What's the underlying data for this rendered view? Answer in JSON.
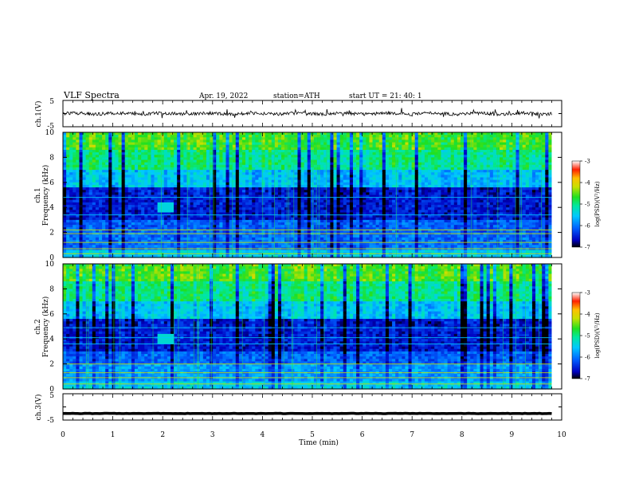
{
  "header": {
    "title": "VLF  Spectra",
    "date": "Apr. 19, 2022",
    "station": "station=ATH",
    "start_ut": "start  UT  =    21: 40: 1"
  },
  "chart_data": [
    {
      "type": "line",
      "panel": "ch1-waveform",
      "ylabel": "ch.1(V)",
      "yticks": [
        "5",
        "-5"
      ],
      "ylim": [
        -5,
        5
      ],
      "xlim": [
        0,
        10
      ],
      "description_values": "noisy waveform near 0 V with spikes between about -1.5 and +1.5 V"
    },
    {
      "type": "heatmap",
      "panel": "ch1-spectrogram",
      "ylabel": "ch.1\nFrequency  (kHz)",
      "ylabel_lines": [
        "ch.1",
        "Frequency  (kHz)"
      ],
      "yticks": [
        "0",
        "2",
        "4",
        "6",
        "8",
        "10"
      ],
      "ylim": [
        0,
        10
      ],
      "xlim": [
        0,
        10
      ],
      "colorbar": {
        "label": "log(PSD)(V²/Hz)",
        "ticks": [
          "-3",
          "-4",
          "-5",
          "-6",
          "-7"
        ],
        "range": [
          -7,
          -3
        ],
        "colors": [
          "#000000",
          "#0000c0",
          "#0060ff",
          "#00c8ff",
          "#00e8a0",
          "#20e020",
          "#c8e000",
          "#ffc000",
          "#ff2000",
          "#ffffff"
        ]
      }
    },
    {
      "type": "heatmap",
      "panel": "ch2-spectrogram",
      "ylabel_lines": [
        "ch.2",
        "Frequency  (kHz)"
      ],
      "yticks": [
        "0",
        "2",
        "4",
        "6",
        "8",
        "10"
      ],
      "ylim": [
        0,
        10
      ],
      "xlim": [
        0,
        10
      ],
      "colorbar": {
        "label": "log(PSD)(V²/Hz)",
        "ticks": [
          "-3",
          "-4",
          "-5",
          "-6",
          "-7"
        ],
        "range": [
          -7,
          -3
        ]
      }
    },
    {
      "type": "line",
      "panel": "ch3-waveform",
      "ylabel": "ch.3(V)",
      "yticks": [
        "5",
        "-5"
      ],
      "ylim": [
        -5,
        5
      ],
      "xlim": [
        0,
        10
      ],
      "description_values": "flat thick trace at about -2.5 V"
    }
  ],
  "xaxis": {
    "label": "Time  (min)",
    "ticks": [
      "0",
      "1",
      "2",
      "3",
      "4",
      "5",
      "6",
      "7",
      "8",
      "9",
      "10"
    ],
    "data_end": 9.8
  }
}
